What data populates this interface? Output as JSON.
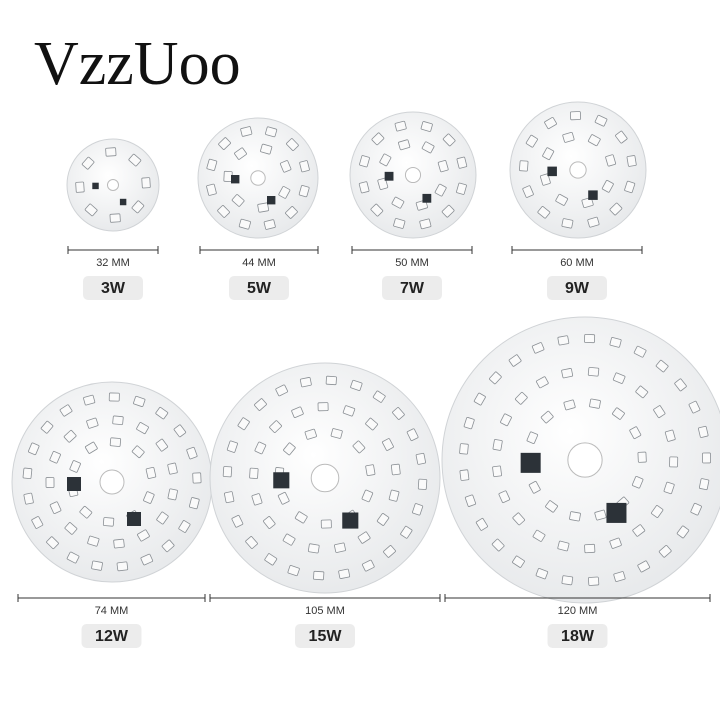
{
  "brand": "VzzUoo",
  "items": [
    {
      "size": "32 MM",
      "power": "3W"
    },
    {
      "size": "44 MM",
      "power": "5W"
    },
    {
      "size": "50 MM",
      "power": "7W"
    },
    {
      "size": "60 MM",
      "power": "9W"
    },
    {
      "size": "74 MM",
      "power": "12W"
    },
    {
      "size": "105 MM",
      "power": "15W"
    },
    {
      "size": "120 MM",
      "power": "18W"
    }
  ]
}
